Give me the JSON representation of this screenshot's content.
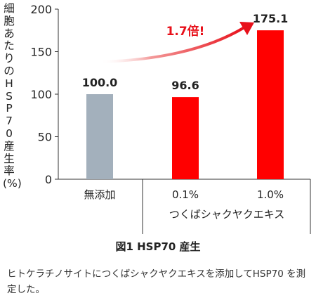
{
  "chart_data": {
    "type": "bar",
    "ylabel": "細胞あたりのHSP70産生率(%)",
    "ylim": [
      0,
      200
    ],
    "yticks": [
      0,
      50,
      100,
      150,
      200
    ],
    "categories": [
      "無添加",
      "0.1%",
      "1.0%"
    ],
    "group_label": "つくばシャクヤクエキス",
    "values": [
      100.0,
      96.6,
      175.1
    ],
    "value_labels": [
      "100.0",
      "96.6",
      "175.1"
    ],
    "bar_colors": [
      "#a3b0bc",
      "#ff0000",
      "#ff0000"
    ],
    "annotation": "1.7倍!",
    "annotation_color": "#e8101a"
  },
  "caption": {
    "title": "図1 HSP70 産生",
    "description": "ヒトケラチノサイトにつくばシャクヤクエキスを添加してHSP70 を測定した。"
  }
}
